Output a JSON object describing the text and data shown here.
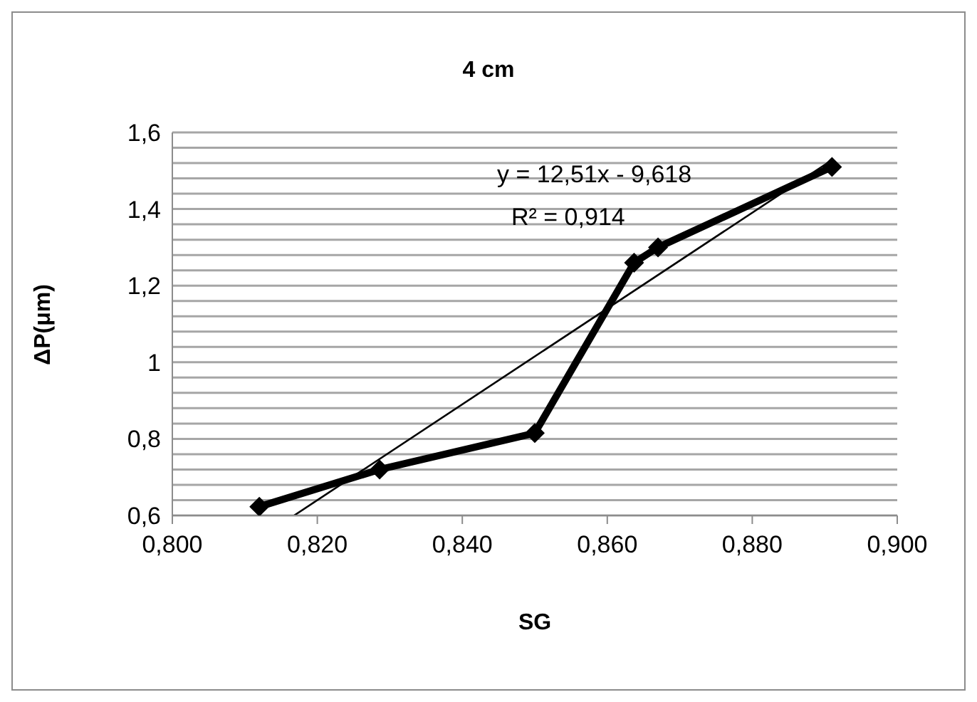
{
  "chart_data": {
    "type": "line",
    "title": "4 cm",
    "xlabel": "SG",
    "ylabel": "ΔP(μm)",
    "series": [
      {
        "color": "#000000",
        "x": [
          0.812,
          0.8286,
          0.85,
          0.8637,
          0.867,
          0.891
        ],
        "values": [
          0.623,
          0.72,
          0.815,
          1.26,
          1.3,
          1.51
        ],
        "marker": "diamond"
      },
      {
        "type": "line",
        "color": "#000000",
        "x": [
          0.8168,
          0.891
        ],
        "values": [
          0.6,
          1.528
        ],
        "marker": "none"
      }
    ],
    "xlim": [
      0.8,
      0.9
    ],
    "xticks": [
      {
        "value": 0.8,
        "label": "0,800"
      },
      {
        "value": 0.82,
        "label": "0,820"
      },
      {
        "value": 0.84,
        "label": "0,840"
      },
      {
        "value": 0.86,
        "label": "0,860"
      },
      {
        "value": 0.88,
        "label": "0,880"
      },
      {
        "value": 0.9,
        "label": "0,900"
      }
    ],
    "ylim": [
      0.6,
      1.6
    ],
    "yticks": [
      {
        "value": 0.6,
        "label": "0,6"
      },
      {
        "value": 0.64,
        "label": null
      },
      {
        "value": 0.68,
        "label": null
      },
      {
        "value": 0.72,
        "label": null
      },
      {
        "value": 0.76,
        "label": null
      },
      {
        "value": 0.8,
        "label": "0,8"
      },
      {
        "value": 0.84,
        "label": null
      },
      {
        "value": 0.88,
        "label": null
      },
      {
        "value": 0.92,
        "label": null
      },
      {
        "value": 0.96,
        "label": null
      },
      1,
      {
        "value": 1.04,
        "label": null
      },
      {
        "value": 1.08,
        "label": null
      },
      {
        "value": 1.12,
        "label": null
      },
      {
        "value": 1.16,
        "label": null
      },
      {
        "value": 1.2,
        "label": "1,2"
      },
      {
        "value": 1.24,
        "label": null
      },
      {
        "value": 1.28,
        "label": null
      },
      {
        "value": 1.32,
        "label": null
      },
      {
        "value": 1.36,
        "label": null
      },
      {
        "value": 1.4,
        "label": "1,4"
      },
      {
        "value": 1.44,
        "label": null
      },
      {
        "value": 1.48,
        "label": null
      },
      {
        "value": 1.52,
        "label": null
      },
      {
        "value": 1.56,
        "label": null
      },
      {
        "value": 1.6,
        "label": "1,6"
      }
    ],
    "grid": "y",
    "annotations": [
      "y = 12,51x - 9,618",
      "R² = 0,914"
    ]
  }
}
